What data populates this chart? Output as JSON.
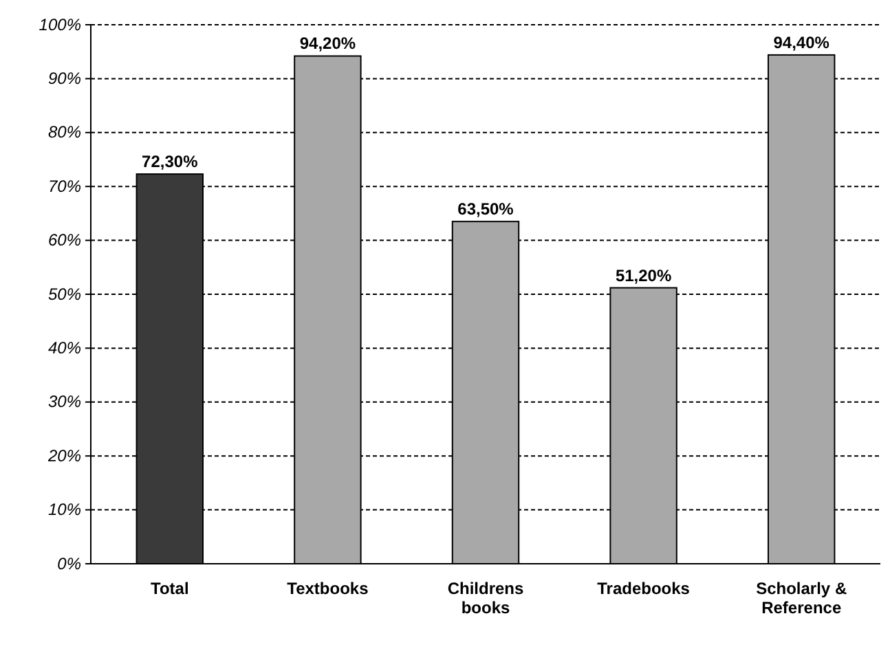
{
  "chart_data": {
    "type": "bar",
    "categories": [
      "Total",
      "Textbooks",
      "Childrens books",
      "Tradebooks",
      "Scholarly & Reference"
    ],
    "values": [
      72.3,
      94.2,
      63.5,
      51.2,
      94.4
    ],
    "colors": [
      "#3a3a3a",
      "#a8a8a8",
      "#a8a8a8",
      "#a8a8a8",
      "#a8a8a8"
    ],
    "value_labels": [
      "72,30%",
      "94,20%",
      "63,50%",
      "51,20%",
      "94,40%"
    ],
    "ylim": [
      0,
      100
    ],
    "yticks": [
      {
        "value": 0,
        "label": "0%"
      },
      {
        "value": 10,
        "label": "10%"
      },
      {
        "value": 20,
        "label": "20%"
      },
      {
        "value": 30,
        "label": "30%"
      },
      {
        "value": 40,
        "label": "40%"
      },
      {
        "value": 50,
        "label": "50%"
      },
      {
        "value": 60,
        "label": "60%"
      },
      {
        "value": 70,
        "label": "70%"
      },
      {
        "value": 80,
        "label": "80%"
      },
      {
        "value": 90,
        "label": "90%"
      },
      {
        "value": 100,
        "label": "100%"
      }
    ],
    "grid": "y"
  }
}
